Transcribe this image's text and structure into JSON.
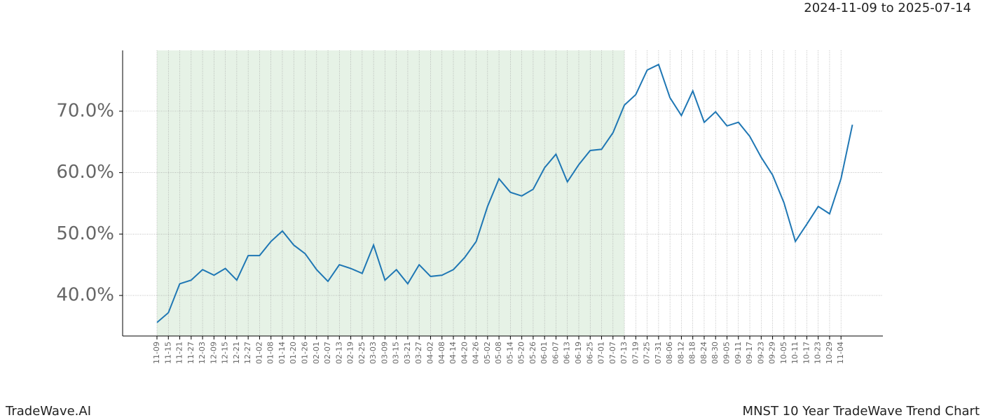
{
  "header": {
    "date_range": "2024-11-09 to 2025-07-14"
  },
  "footer": {
    "brand": "TradeWave.AI",
    "chart_name": "MNST 10 Year TradeWave Trend Chart"
  },
  "chart_data": {
    "type": "line",
    "categories": [
      "11-09",
      "11-15",
      "11-21",
      "11-27",
      "12-03",
      "12-09",
      "12-15",
      "12-21",
      "12-27",
      "01-02",
      "01-08",
      "01-14",
      "01-20",
      "01-26",
      "02-01",
      "02-07",
      "02-13",
      "02-19",
      "02-25",
      "03-03",
      "03-09",
      "03-15",
      "03-21",
      "03-27",
      "04-02",
      "04-08",
      "04-14",
      "04-20",
      "04-26",
      "05-02",
      "05-08",
      "05-14",
      "05-20",
      "05-26",
      "06-01",
      "06-07",
      "06-13",
      "06-19",
      "06-25",
      "07-01",
      "07-07",
      "07-13",
      "07-19",
      "07-25",
      "07-31",
      "08-06",
      "08-12",
      "08-18",
      "08-24",
      "08-30",
      "09-05",
      "09-11",
      "09-17",
      "09-23",
      "09-29",
      "10-05",
      "10-11",
      "10-17",
      "10-23",
      "10-29",
      "11-04",
      null
    ],
    "values": [
      35.6,
      37.2,
      41.9,
      42.5,
      44.2,
      43.3,
      44.4,
      42.5,
      46.5,
      46.5,
      48.8,
      50.5,
      48.2,
      46.8,
      44.2,
      42.3,
      45.0,
      44.4,
      43.6,
      48.2,
      42.5,
      44.2,
      41.9,
      45.0,
      43.1,
      43.3,
      44.2,
      46.2,
      48.8,
      54.5,
      59.0,
      56.8,
      56.2,
      57.3,
      60.8,
      63.0,
      58.5,
      61.3,
      63.6,
      63.8,
      66.5,
      71.0,
      72.7,
      76.7,
      77.6,
      72.2,
      69.3,
      73.3,
      68.2,
      69.9,
      67.6,
      68.2,
      65.9,
      62.5,
      59.6,
      55.1,
      48.8,
      51.6,
      54.5,
      53.3,
      59.0,
      67.8
    ],
    "color": "#1f77b4",
    "shaded_range": [
      "11-09",
      "07-13"
    ],
    "shade_color": "#e6f2e6",
    "ylim": [
      33.4,
      79.9
    ],
    "yticks": [
      {
        "value": 40,
        "label": "40.0%"
      },
      {
        "value": 50,
        "label": "50.0%"
      },
      {
        "value": 60,
        "label": "60.0%"
      },
      {
        "value": 70,
        "label": "70.0%"
      }
    ],
    "grid": true
  }
}
